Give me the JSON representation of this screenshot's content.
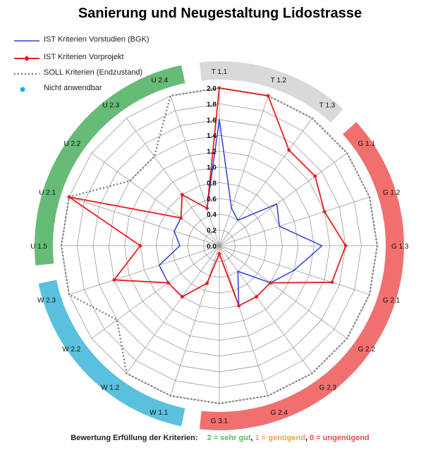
{
  "title": "Sanierung und Neugestaltung Lidostrasse",
  "legend": {
    "ist_vorstudien": "IST Kriterien Vorstudien (BGK)",
    "ist_vorprojekt": "IST Kriterien Vorprojekt",
    "soll": "SOLL Kriterien (Endzustand)",
    "nicht_anwendbar": "Nicht anwendbar"
  },
  "footer": {
    "label": "Bewertung Erfüllung der Kriterien:",
    "good": "2 = sehr gut",
    "ok": "1 = genügend",
    "bad": "0 = ungenügend"
  },
  "colors": {
    "vorstudien": "#2b3fd6",
    "vorprojekt": "#e81e1e",
    "soll": "#808080",
    "nicht_anwendbar": "#1ab0e8",
    "segment_T": "#d9d9d9",
    "segment_G": "#f07070",
    "segment_W": "#5bc0de",
    "segment_U": "#66bb77",
    "grid": "#9a9a9a"
  },
  "chart_data": {
    "type": "radar",
    "title": "Sanierung und Neugestaltung Lidostrasse",
    "categories": [
      "T 1.1",
      "T 1.2",
      "T 1.3",
      "G 1.1",
      "G 1.2",
      "G 1.3",
      "G 2.1",
      "G 2.2",
      "G 2.3",
      "G 2.4",
      "G 3.1",
      "W 1.1",
      "W 1.2",
      "W 2.2",
      "W 2.3",
      "U 1.5",
      "U 2.1",
      "U 2.2",
      "U 2.3",
      "U 2.4"
    ],
    "range": [
      0,
      2
    ],
    "ticks": [
      "0.0",
      "0.2",
      "0.4",
      "0.6",
      "0.8",
      "1.0",
      "1.2",
      "1.4",
      "1.6",
      "1.8",
      "2.0"
    ],
    "series": [
      {
        "name": "IST Kriterien Vorstudien (BGK)",
        "values": [
          1.6,
          0.5,
          0.4,
          0.9,
          0.8,
          1.3,
          1.0,
          0.8,
          0.4,
          0.8,
          0.1,
          0.5,
          0.8,
          0.8,
          0.8,
          0.5,
          0.6,
          0.6,
          0.8,
          0.5
        ]
      },
      {
        "name": "IST Kriterien Vorprojekt",
        "values": [
          2.0,
          2.0,
          1.5,
          1.5,
          1.4,
          1.6,
          1.5,
          0.8,
          0.8,
          0.8,
          0.1,
          0.5,
          0.8,
          0.8,
          1.4,
          1.0,
          2.0,
          0.6,
          0.8,
          0.5
        ]
      },
      {
        "name": "SOLL Kriterien (Endzustand)",
        "values": [
          2.0,
          2.0,
          2.0,
          2.0,
          2.0,
          2.0,
          2.0,
          2.0,
          2.0,
          2.0,
          2.0,
          2.0,
          2.0,
          1.6,
          2.0,
          2.0,
          2.0,
          1.4,
          1.4,
          2.0
        ]
      }
    ],
    "segments": [
      {
        "group": "T",
        "from": 0,
        "to": 2
      },
      {
        "group": "G",
        "from": 3,
        "to": 10
      },
      {
        "group": "W",
        "from": 11,
        "to": 14
      },
      {
        "group": "U",
        "from": 15,
        "to": 19
      }
    ],
    "grid": true,
    "legend_position": "top-left"
  }
}
